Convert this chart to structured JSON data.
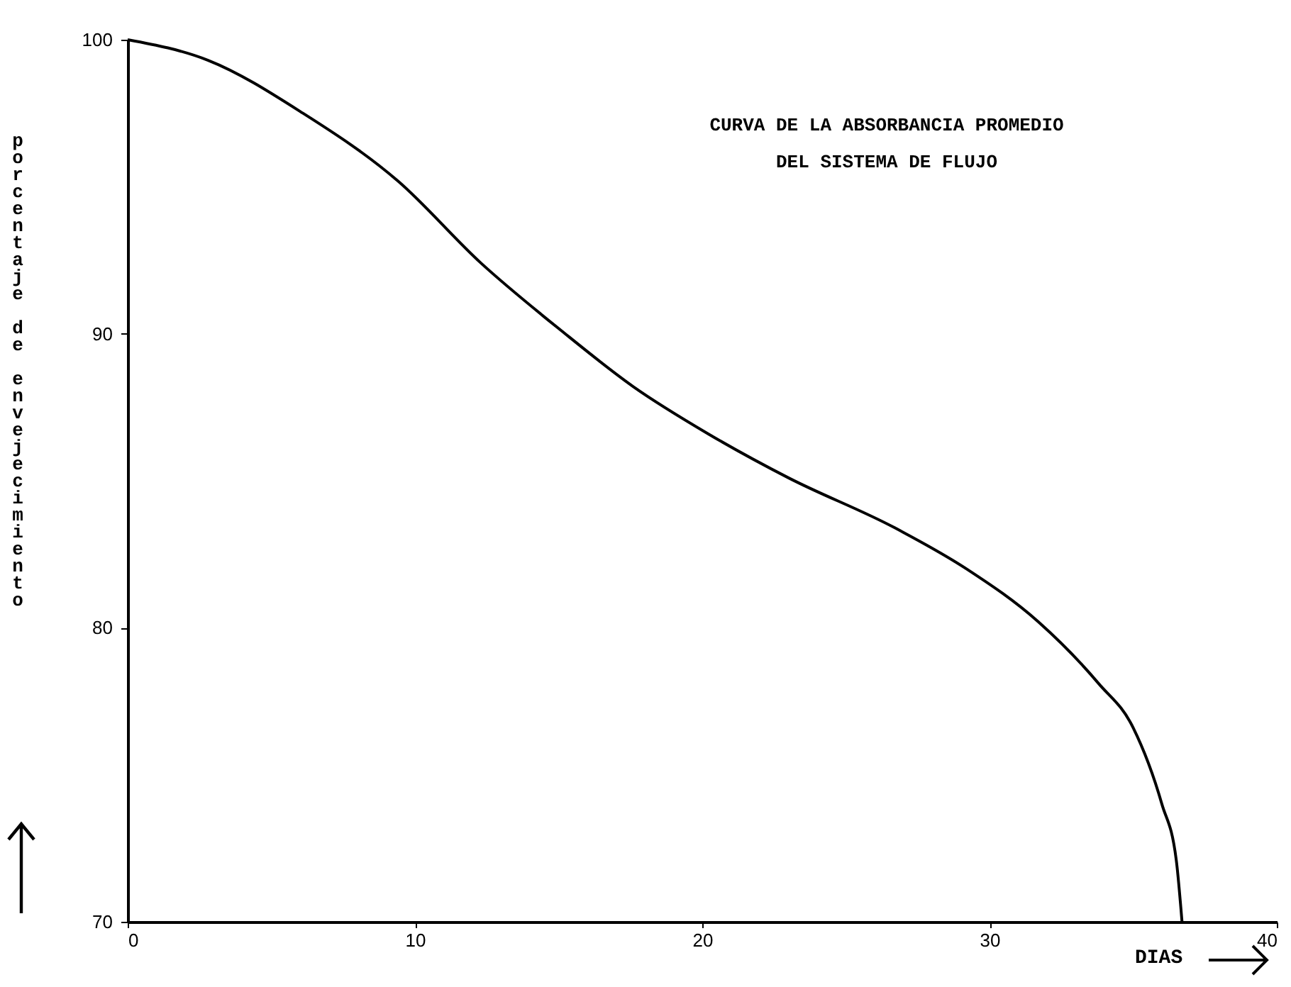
{
  "chart_data": {
    "type": "line",
    "title": "CURVA DE LA ABSORBANCIA PROMEDIO",
    "subtitle": "DEL SISTEMA DE FLUJO",
    "xlabel": "DIAS",
    "ylabel": "porcentaje de envejecimiento",
    "x": [
      0,
      2.8,
      6.1,
      9.4,
      12.3,
      15.1,
      17.6,
      20.2,
      23.0,
      26.7,
      29.2,
      31.7,
      33.8,
      35.0,
      36.0,
      36.5,
      36.7
    ],
    "series": [
      {
        "color": "#000000",
        "values": [
          100,
          99.3,
          97.5,
          95.2,
          92.4,
          90.1,
          88.2,
          86.6,
          85.1,
          83.4,
          82.0,
          80.2,
          78.1,
          76.6,
          74.0,
          72.1,
          70
        ]
      }
    ],
    "xlim": [
      0,
      40
    ],
    "xticks": [
      0,
      10,
      20,
      30,
      40
    ],
    "ylim": [
      70,
      100
    ],
    "yticks": [
      70,
      80,
      90,
      100
    ]
  }
}
